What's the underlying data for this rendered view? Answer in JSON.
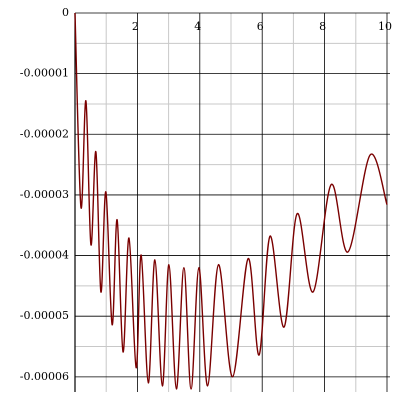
{
  "chart_data": {
    "type": "line",
    "x": [
      0,
      0.19,
      0.35,
      0.51,
      0.67,
      0.83,
      0.99,
      1.19,
      1.35,
      1.54,
      1.73,
      1.96,
      2.12,
      2.35,
      2.56,
      2.8,
      3.01,
      3.25,
      3.49,
      3.72,
      3.97,
      4.25,
      4.6,
      5.05,
      5.55,
      5.9,
      6.25,
      6.7,
      7.12,
      7.63,
      8.21,
      8.75,
      9.46,
      10
    ],
    "series": [
      {
        "color": "#7a0000",
        "values": [
          0,
          -3.2e-05,
          -1.45e-05,
          -3.82e-05,
          -2.29e-05,
          -4.6e-05,
          -2.95e-05,
          -5.14e-05,
          -3.41e-05,
          -5.59e-05,
          -3.71e-05,
          -5.85e-05,
          -3.99e-05,
          -6.1e-05,
          -4.07e-05,
          -6.15e-05,
          -4.15e-05,
          -6.2e-05,
          -4.2e-05,
          -6.2e-05,
          -4.2e-05,
          -6.15e-05,
          -4.15e-05,
          -6e-05,
          -4.05e-05,
          -5.64e-05,
          -3.68e-05,
          -5.18e-05,
          -3.31e-05,
          -4.6e-05,
          -2.83e-05,
          -3.94e-05,
          -2.34e-05,
          -3.16e-05
        ]
      }
    ],
    "xlim": [
      0,
      10
    ],
    "ylim": [
      -6.25e-05,
      0
    ],
    "xticks": [
      2,
      4,
      6,
      8,
      10
    ],
    "yticks": [
      0,
      -1e-05,
      -2e-05,
      -3e-05,
      -4e-05,
      -5e-05,
      -6e-05
    ],
    "x_minor_ticks": [
      1,
      3,
      5,
      7,
      9
    ],
    "y_minor_ticks": [
      -5e-06,
      -1.5e-05,
      -2.5e-05,
      -3.5e-05,
      -4.5e-05,
      -5.5e-05
    ],
    "grid": true
  }
}
